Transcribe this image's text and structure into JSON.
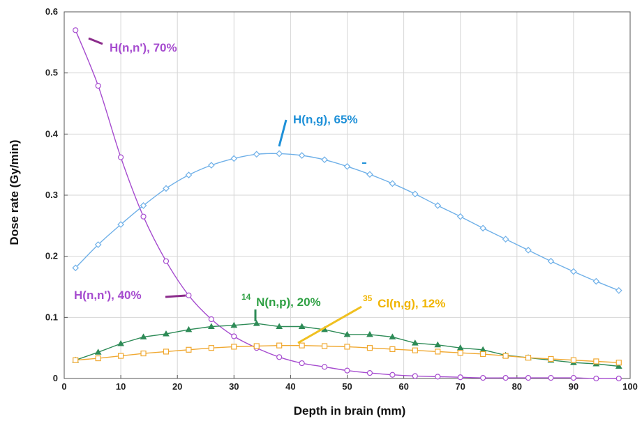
{
  "chart_data": {
    "type": "line",
    "xlabel": "Depth in brain (mm)",
    "ylabel": "Dose rate (Gy/min)",
    "xlim": [
      0,
      100
    ],
    "ylim": [
      0,
      0.6
    ],
    "xticks": [
      "0",
      "10",
      "20",
      "30",
      "40",
      "50",
      "60",
      "70",
      "80",
      "90",
      "100"
    ],
    "yticks": [
      "0",
      "0.1",
      "0.2",
      "0.3",
      "0.4",
      "0.5",
      "0.6"
    ],
    "grid": true,
    "legend": "none",
    "x": [
      2,
      6,
      10,
      14,
      18,
      22,
      26,
      30,
      34,
      38,
      42,
      46,
      50,
      54,
      58,
      62,
      66,
      70,
      74,
      78,
      82,
      86,
      90,
      94,
      98
    ],
    "series": [
      {
        "color": "#a64ccf",
        "marker": "circle",
        "values": [
          0.57,
          0.479,
          0.362,
          0.265,
          0.192,
          0.136,
          0.097,
          0.069,
          0.05,
          0.035,
          0.025,
          0.019,
          0.013,
          0.009,
          0.006,
          0.004,
          0.003,
          0.002,
          0.001,
          0.001,
          0.001,
          0.001,
          0.001,
          0.0,
          0.0
        ]
      },
      {
        "color": "#6fb0e8",
        "marker": "diamond",
        "values": [
          0.181,
          0.219,
          0.252,
          0.283,
          0.311,
          0.333,
          0.349,
          0.36,
          0.367,
          0.368,
          0.365,
          0.358,
          0.347,
          0.334,
          0.319,
          0.302,
          0.283,
          0.265,
          0.246,
          0.228,
          0.21,
          0.192,
          0.175,
          0.159,
          0.144
        ]
      },
      {
        "color": "#2e8b57",
        "marker": "triangle",
        "values": [
          0.03,
          0.043,
          0.057,
          0.068,
          0.073,
          0.08,
          0.085,
          0.087,
          0.09,
          0.085,
          0.085,
          0.08,
          0.072,
          0.072,
          0.068,
          0.058,
          0.055,
          0.05,
          0.047,
          0.038,
          0.034,
          0.03,
          0.026,
          0.024,
          0.02
        ]
      },
      {
        "color": "#f0a830",
        "marker": "square",
        "values": [
          0.03,
          0.033,
          0.037,
          0.041,
          0.044,
          0.047,
          0.05,
          0.052,
          0.053,
          0.054,
          0.054,
          0.053,
          0.052,
          0.05,
          0.048,
          0.046,
          0.044,
          0.042,
          0.04,
          0.037,
          0.034,
          0.032,
          0.03,
          0.028,
          0.026
        ]
      }
    ],
    "annotations": [
      {
        "text": "H(n,n'), 70%",
        "color": "#a64ccf"
      },
      {
        "text": "H(n,g), 65%",
        "color": "#1e90d8"
      },
      {
        "text": "H(n,n'), 40%",
        "color": "#a64ccf"
      },
      {
        "sup": "14",
        "text": "N(n,p), 20%",
        "color": "#2ea043"
      },
      {
        "sup": "35",
        "text": "Cl(n,g), 12%",
        "color": "#f0b400"
      }
    ]
  }
}
